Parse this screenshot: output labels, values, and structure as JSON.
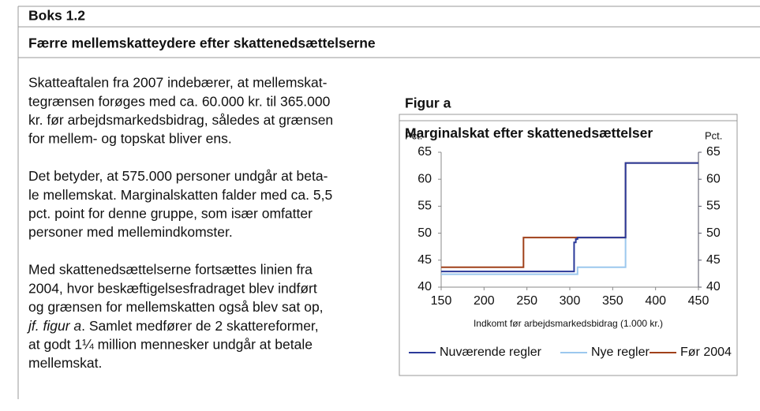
{
  "box": {
    "label": "Boks 1.2",
    "title": "Færre mellemskatteydere efter skattenedsættelserne"
  },
  "paragraphs": [
    {
      "lines": [
        "Skatteaftalen fra 2007 indebærer, at mellemskat-",
        "tegrænsen forøges med ca. 60.000 kr. til 365.000",
        "kr. før arbejdsmarkedsbidrag, således at grænsen",
        "for mellem- og topskat bliver ens."
      ]
    },
    {
      "lines": [
        "Det betyder, at 575.000 personer undgår at beta-",
        "le mellemskat. Marginalskatten falder med ca. 5,5",
        "pct. point for denne gruppe, som især omfatter",
        "personer med mellemindkomster."
      ]
    },
    {
      "lines": [
        "Med skattenedsættelserne fortsættes linien fra",
        "2004, hvor beskæftigelsesfradraget blev indført",
        "og grænsen for mellemskatten også blev sat op,",
        {
          "italic": "jf. figur a",
          "text": ". Samlet medfører de 2 skattereformer,"
        },
        "at godt 1¼ million mennesker undgår at betale",
        "mellemskat."
      ]
    }
  ],
  "figure": {
    "label": "Figur a"
  },
  "chart_data": {
    "type": "line",
    "title": "Marginalskat efter skattenedsættelser",
    "y_unit": "Pct.",
    "y2_unit": "Pct.",
    "xlabel": "Indkomt før arbejdsmarkedsbidrag (1.000 kr.)",
    "xlim": [
      150,
      450
    ],
    "xticks": [
      150,
      200,
      250,
      300,
      350,
      400,
      450
    ],
    "ylim": [
      40,
      65
    ],
    "yticks": [
      40,
      45,
      50,
      55,
      60,
      65
    ],
    "y2lim": [
      40,
      65
    ],
    "y2ticks": [
      40,
      45,
      50,
      55,
      60,
      65
    ],
    "series": [
      {
        "name": "Nuværende regler",
        "color": "#2b3a9a",
        "x": [
          150,
          305,
          305,
          307,
          307,
          309,
          309,
          365,
          365,
          450
        ],
        "values": [
          42.9,
          42.9,
          48.3,
          48.3,
          48.9,
          48.9,
          49.2,
          49.2,
          63,
          63
        ]
      },
      {
        "name": "Nye regler",
        "color": "#9cc8ee",
        "x": [
          150,
          309,
          309,
          365,
          365,
          450
        ],
        "values": [
          42.4,
          42.4,
          43.7,
          43.7,
          63,
          63
        ]
      },
      {
        "name": "Før 2004",
        "color": "#a0401a",
        "x": [
          150,
          246,
          246,
          365,
          365,
          450
        ],
        "values": [
          43.7,
          43.7,
          49.2,
          49.2,
          63,
          63
        ]
      }
    ]
  }
}
